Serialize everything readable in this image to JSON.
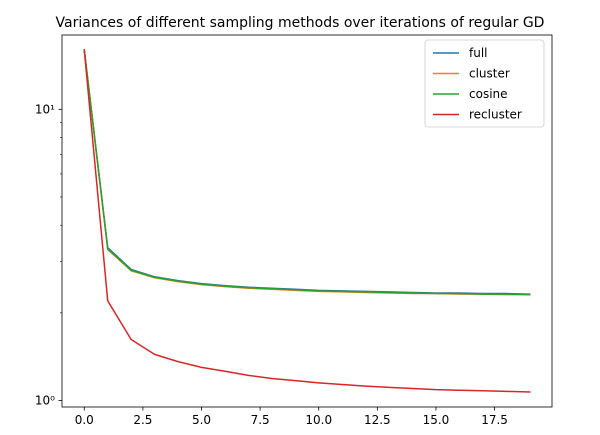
{
  "chart_data": {
    "type": "line",
    "title": "Variances of different sampling methods over iterations of regular GD",
    "xlabel": "",
    "ylabel": "",
    "yscale": "log",
    "xlim": [
      -0.95,
      19.95
    ],
    "ylim": [
      0.95,
      18.0
    ],
    "xticks": [
      0.0,
      2.5,
      5.0,
      7.5,
      10.0,
      12.5,
      15.0,
      17.5
    ],
    "xtick_labels": [
      "0.0",
      "2.5",
      "5.0",
      "7.5",
      "10.0",
      "12.5",
      "15.0",
      "17.5"
    ],
    "yticks": [
      1,
      10
    ],
    "ytick_labels": [
      "10⁰",
      "10¹"
    ],
    "grid": false,
    "legend_position": "upper-right",
    "x": [
      0,
      1,
      2,
      3,
      4,
      5,
      6,
      7,
      8,
      9,
      10,
      11,
      12,
      13,
      14,
      15,
      16,
      17,
      18,
      19
    ],
    "series": [
      {
        "name": "full",
        "color": "#1f77b4",
        "values": [
          16.0,
          3.35,
          2.82,
          2.66,
          2.58,
          2.52,
          2.48,
          2.45,
          2.43,
          2.41,
          2.39,
          2.38,
          2.37,
          2.36,
          2.35,
          2.34,
          2.34,
          2.33,
          2.33,
          2.32
        ]
      },
      {
        "name": "cluster",
        "color": "#ff7f0e",
        "values": [
          16.0,
          3.3,
          2.79,
          2.64,
          2.56,
          2.5,
          2.46,
          2.43,
          2.41,
          2.39,
          2.37,
          2.36,
          2.35,
          2.34,
          2.33,
          2.33,
          2.32,
          2.32,
          2.31,
          2.31
        ]
      },
      {
        "name": "cosine",
        "color": "#2ca02c",
        "values": [
          16.0,
          3.32,
          2.8,
          2.65,
          2.57,
          2.51,
          2.47,
          2.44,
          2.42,
          2.4,
          2.38,
          2.37,
          2.36,
          2.35,
          2.34,
          2.33,
          2.33,
          2.32,
          2.32,
          2.31
        ]
      },
      {
        "name": "recluster",
        "color": "#d62728",
        "values": [
          16.0,
          2.2,
          1.62,
          1.44,
          1.36,
          1.3,
          1.26,
          1.22,
          1.19,
          1.17,
          1.15,
          1.135,
          1.12,
          1.11,
          1.1,
          1.09,
          1.085,
          1.08,
          1.075,
          1.07
        ]
      }
    ]
  }
}
